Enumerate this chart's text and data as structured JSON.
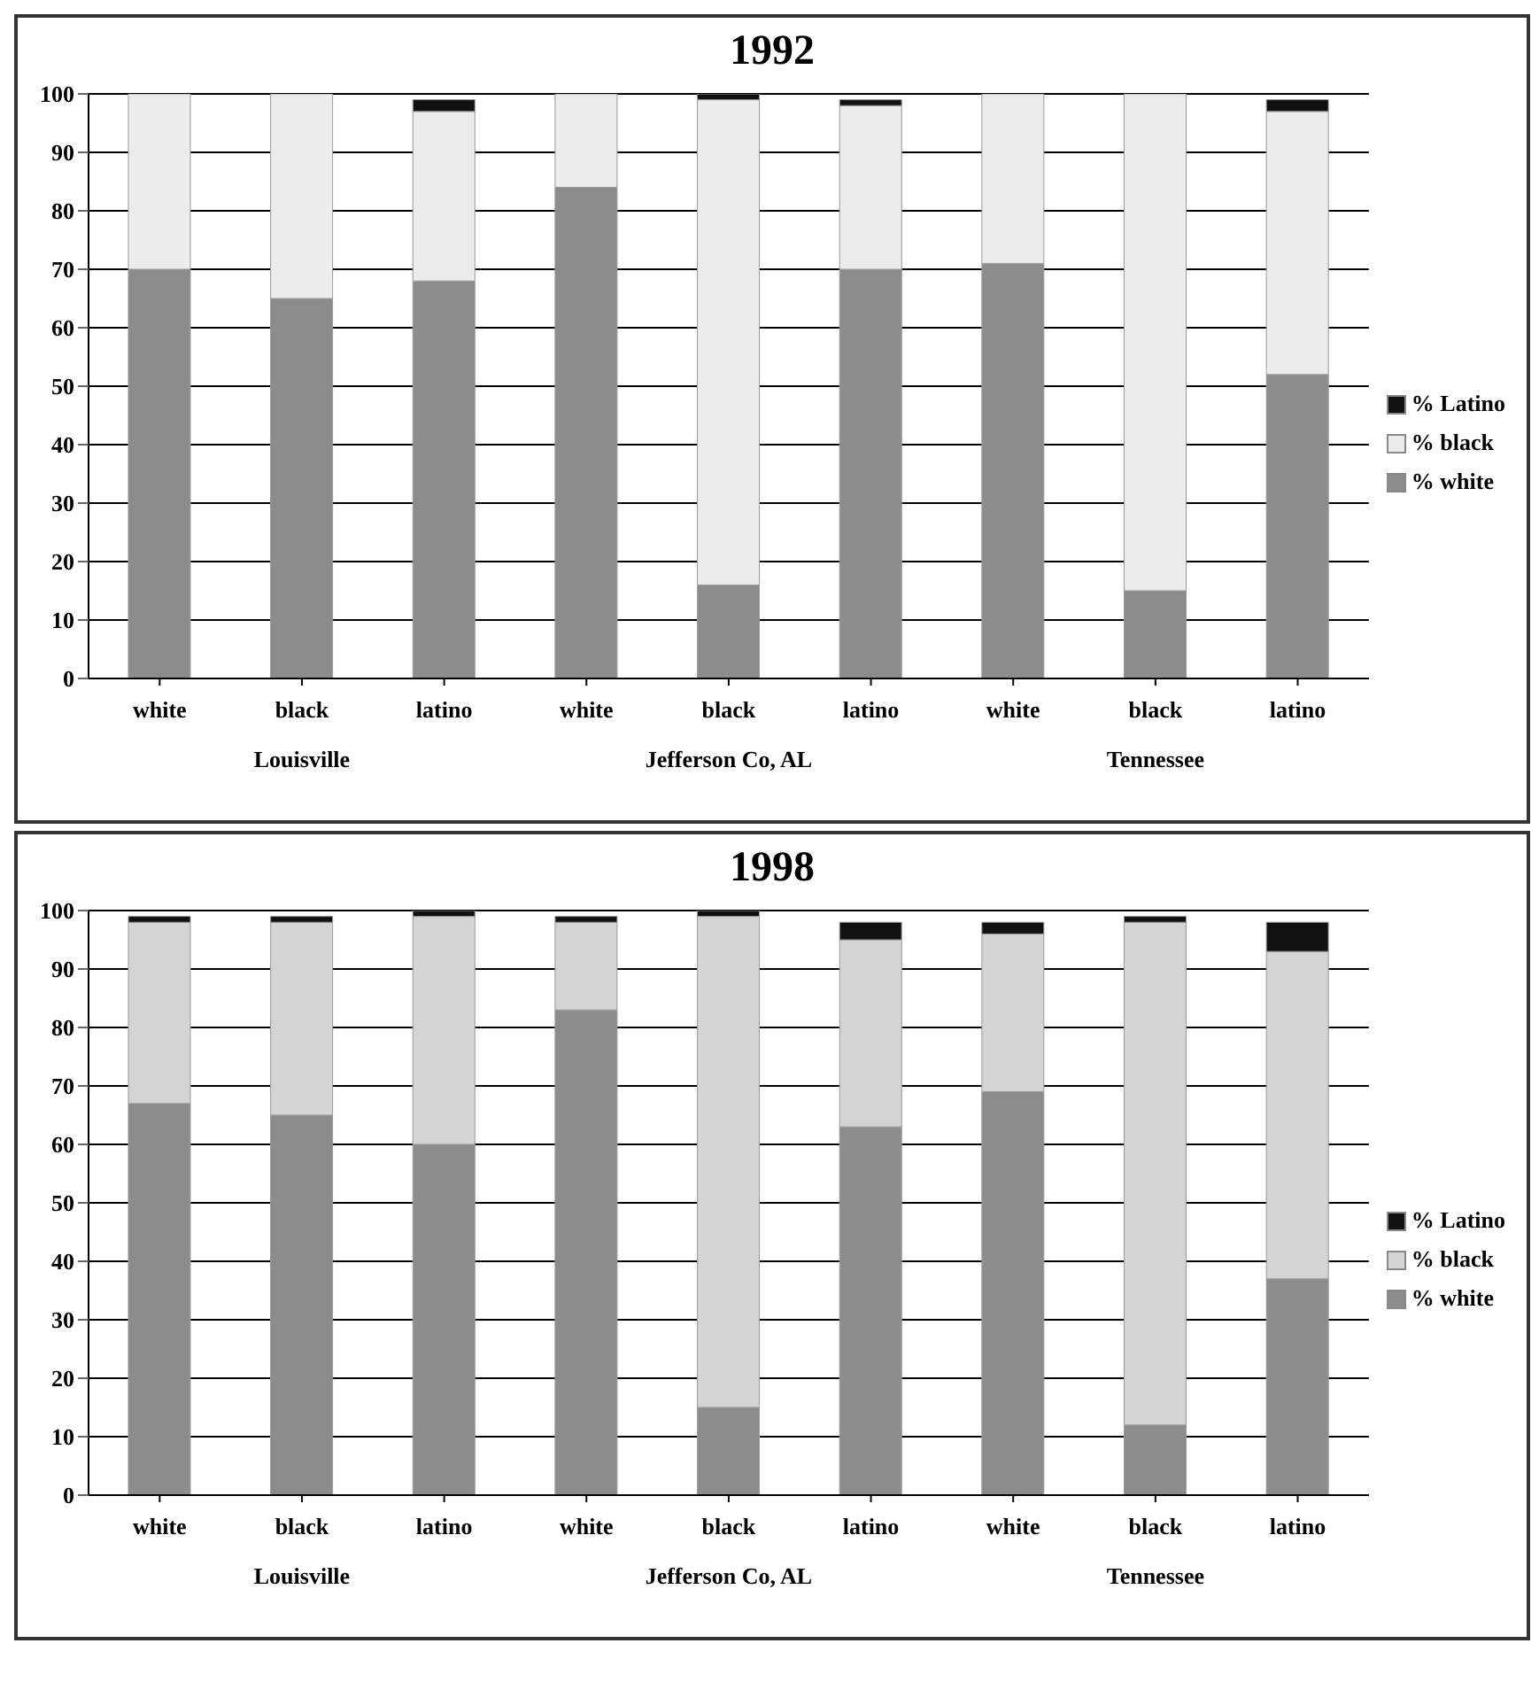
{
  "chart_data": [
    {
      "type": "bar",
      "title": "1992",
      "categories": [
        "white",
        "black",
        "latino",
        "white",
        "black",
        "latino",
        "white",
        "black",
        "latino"
      ],
      "stacked": true,
      "ylim": [
        0,
        100
      ],
      "yticks": [
        0,
        10,
        20,
        30,
        40,
        50,
        60,
        70,
        80,
        90,
        100
      ],
      "grid": "y",
      "legend": "right",
      "annotations": [
        "Louisville",
        "Jefferson Co, AL",
        "Tennessee"
      ],
      "series": [
        {
          "name": "% white",
          "color": "#8c8c8c",
          "values": [
            70,
            65,
            68,
            84,
            16,
            70,
            71,
            15,
            52
          ]
        },
        {
          "name": "% black",
          "color": "#ececec",
          "values": [
            30,
            35,
            29,
            16,
            83,
            28,
            29,
            85,
            45
          ]
        },
        {
          "name": "% Latino",
          "color": "#111111",
          "values": [
            0,
            0,
            2,
            0,
            1,
            1,
            0,
            0,
            2
          ]
        }
      ]
    },
    {
      "type": "bar",
      "title": "1998",
      "categories": [
        "white",
        "black",
        "latino",
        "white",
        "black",
        "latino",
        "white",
        "black",
        "latino"
      ],
      "stacked": true,
      "ylim": [
        0,
        100
      ],
      "yticks": [
        0,
        10,
        20,
        30,
        40,
        50,
        60,
        70,
        80,
        90,
        100
      ],
      "grid": "y",
      "legend": "right",
      "annotations": [
        "Louisville",
        "Jefferson Co, AL",
        "Tennessee"
      ],
      "series": [
        {
          "name": "% white",
          "color": "#8c8c8c",
          "values": [
            67,
            65,
            60,
            83,
            15,
            63,
            69,
            12,
            37
          ]
        },
        {
          "name": "% black",
          "color": "#d4d4d4",
          "values": [
            31,
            33,
            39,
            15,
            84,
            32,
            27,
            86,
            56
          ]
        },
        {
          "name": "% Latino",
          "color": "#111111",
          "values": [
            1,
            1,
            1,
            1,
            1,
            3,
            2,
            1,
            5
          ]
        }
      ]
    }
  ]
}
